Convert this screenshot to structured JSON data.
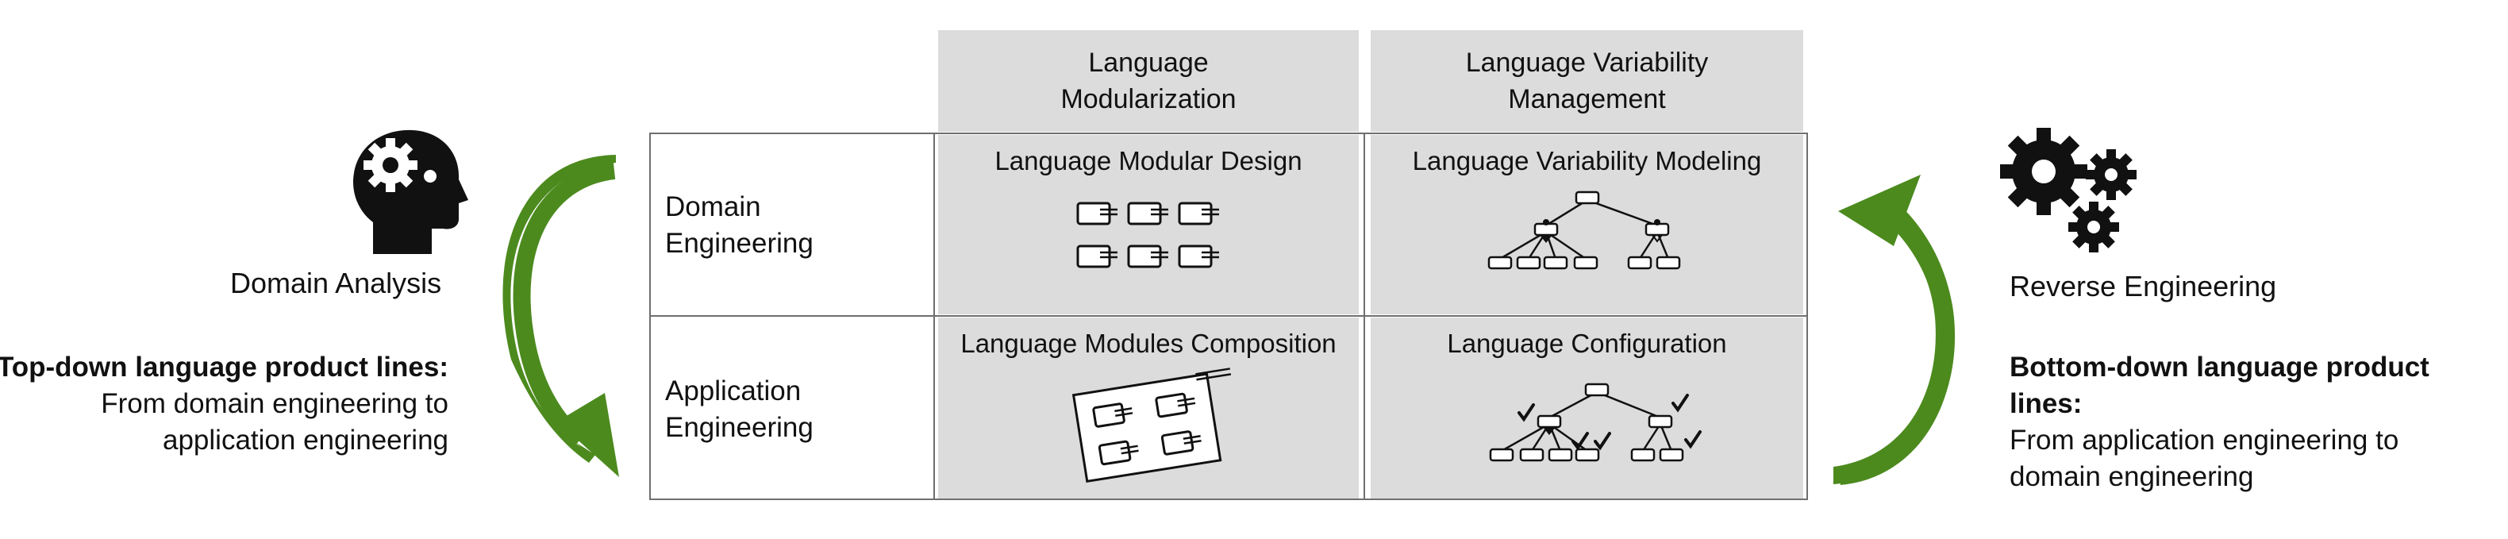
{
  "left": {
    "title": "Domain Analysis",
    "heading": "Top-down language product lines:",
    "line1": "From domain engineering to",
    "line2": "application engineering",
    "icon": "head-with-gear-icon"
  },
  "right": {
    "title": "Reverse Engineering",
    "heading": "Bottom-down language product lines:",
    "line1": "From application engineering to",
    "line2": "domain engineering",
    "icon": "gears-icon"
  },
  "columns": [
    {
      "line1": "Language",
      "line2": "Modularization"
    },
    {
      "line1": "Language Variability",
      "line2": "Management"
    }
  ],
  "rows": [
    {
      "line1": "Domain",
      "line2": "Engineering"
    },
    {
      "line1": "Application",
      "line2": "Engineering"
    }
  ],
  "cells": {
    "modular_design": "Language Modular Design",
    "variability_modeling": "Language Variability Modeling",
    "modules_composition": "Language Modules Composition",
    "configuration": "Language Configuration"
  },
  "colors": {
    "arrow_green": "#4c8a1e",
    "cell_gray": "#dcdcdc",
    "grid_line": "#6f6f6f"
  }
}
